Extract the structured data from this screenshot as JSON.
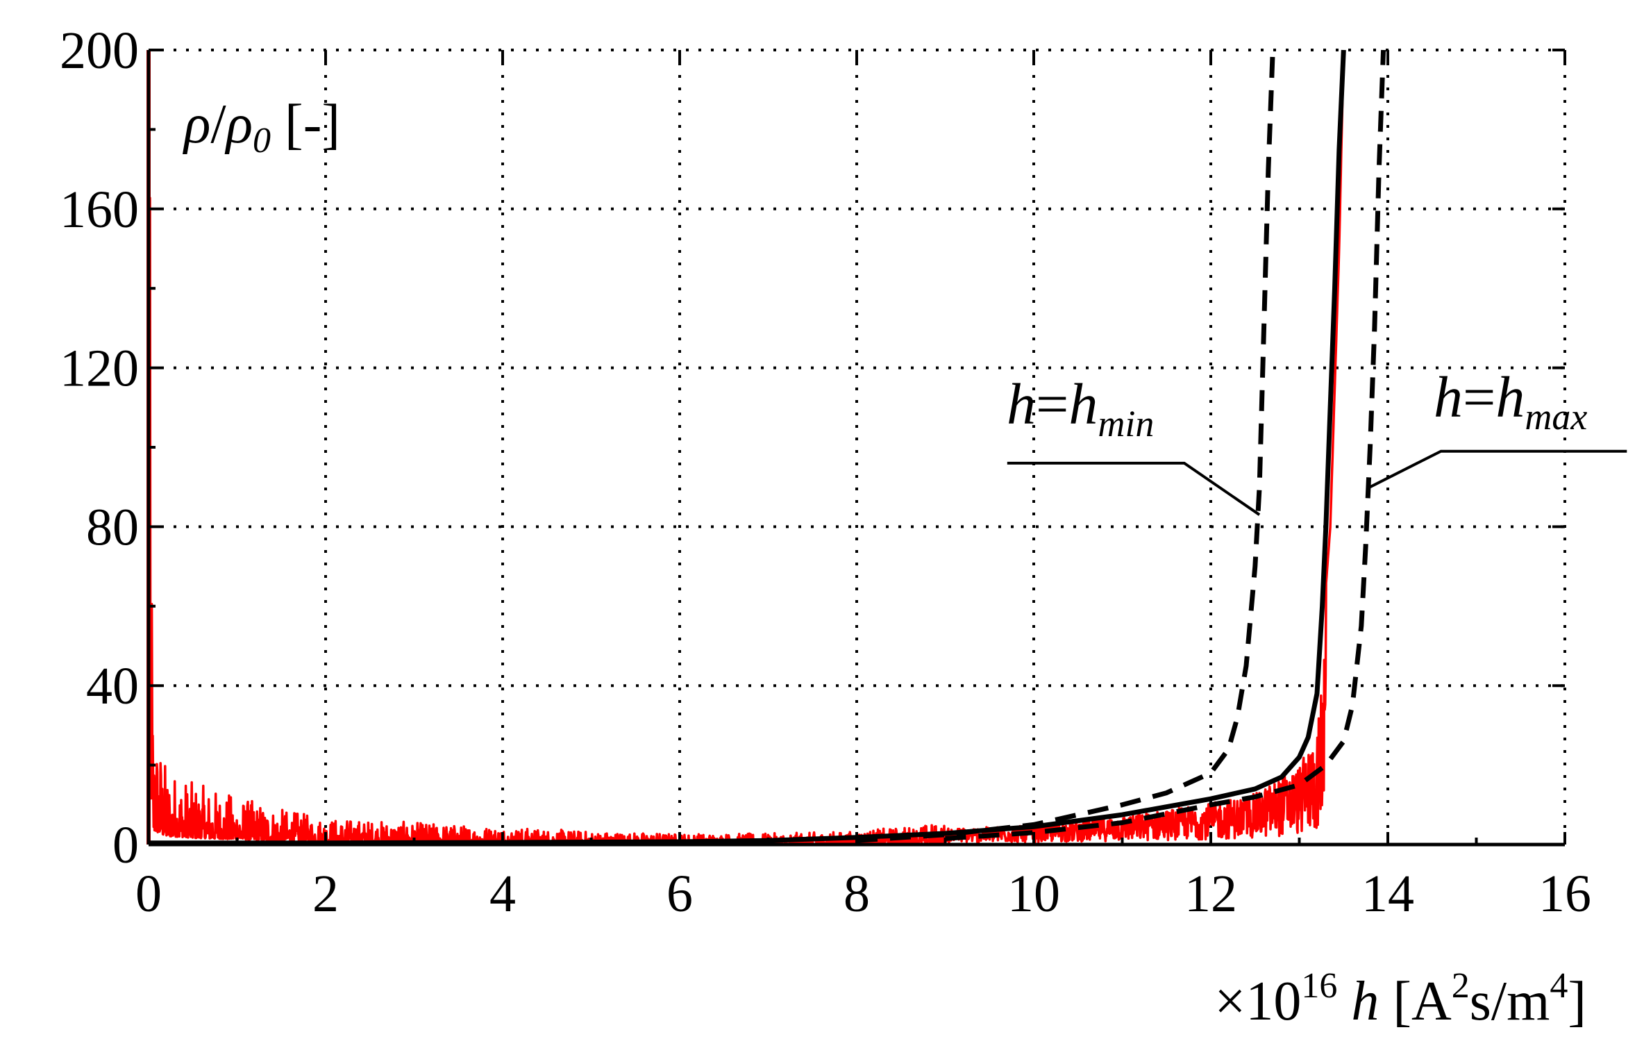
{
  "chart_data": {
    "type": "line",
    "xlim": [
      0,
      16
    ],
    "ylim": [
      0,
      200
    ],
    "x_ticks": [
      0,
      2,
      4,
      6,
      8,
      10,
      12,
      14,
      16
    ],
    "y_ticks": [
      0,
      40,
      80,
      120,
      160,
      200
    ],
    "x_tick_labels": [
      "0",
      "2",
      "4",
      "6",
      "8",
      "10",
      "12",
      "14",
      "16"
    ],
    "y_tick_labels": [
      "0",
      "40",
      "80",
      "120",
      "160",
      "200"
    ],
    "ylabel": {
      "rho": "ρ",
      "slash": "/",
      "rho0": "ρ",
      "sub0": "0",
      "unit": " [-]"
    },
    "xlabel": {
      "prefix": "×10",
      "exp": "16",
      "var": "h",
      "unit_open": " [A",
      "unit_exp1": "2",
      "unit_mid": "s/m",
      "unit_exp2": "4",
      "unit_close": "]"
    },
    "grid": true,
    "series": [
      {
        "role": "measured",
        "color": "#ff0000",
        "style": "solid-noisy",
        "envelope": [
          [
            0.0,
            200
          ],
          [
            0.05,
            30
          ],
          [
            0.2,
            18
          ],
          [
            0.5,
            14
          ],
          [
            1.0,
            11
          ],
          [
            1.5,
            8
          ],
          [
            2.0,
            6
          ],
          [
            3.0,
            5
          ],
          [
            4.0,
            4
          ],
          [
            5.0,
            3
          ],
          [
            6.0,
            2.5
          ],
          [
            7.0,
            2.5
          ],
          [
            8.0,
            3
          ],
          [
            9.0,
            5
          ],
          [
            10.0,
            6
          ],
          [
            11.0,
            9
          ],
          [
            12.0,
            13
          ],
          [
            12.5,
            16
          ],
          [
            13.0,
            25
          ],
          [
            13.2,
            35
          ],
          [
            13.35,
            80
          ],
          [
            13.45,
            150
          ],
          [
            13.5,
            200
          ]
        ]
      },
      {
        "role": "model",
        "color": "#000000",
        "style": "solid",
        "points": [
          [
            0,
            0.4
          ],
          [
            2,
            0.4
          ],
          [
            4,
            0.5
          ],
          [
            6,
            0.7
          ],
          [
            7,
            1.0
          ],
          [
            8,
            1.8
          ],
          [
            9,
            2.8
          ],
          [
            10,
            4.5
          ],
          [
            11,
            7.5
          ],
          [
            12,
            11.5
          ],
          [
            12.5,
            14
          ],
          [
            12.8,
            17
          ],
          [
            13.0,
            22
          ],
          [
            13.1,
            27
          ],
          [
            13.2,
            38
          ],
          [
            13.26,
            60
          ],
          [
            13.3,
            80
          ],
          [
            13.35,
            110
          ],
          [
            13.4,
            140
          ],
          [
            13.45,
            175
          ],
          [
            13.5,
            200
          ]
        ]
      },
      {
        "role": "h_min",
        "color": "#000000",
        "style": "dashed",
        "points": [
          [
            8,
            1.0
          ],
          [
            9,
            2.5
          ],
          [
            10,
            5
          ],
          [
            11,
            10
          ],
          [
            11.5,
            13
          ],
          [
            12.0,
            18
          ],
          [
            12.2,
            24
          ],
          [
            12.3,
            32
          ],
          [
            12.4,
            45
          ],
          [
            12.5,
            70
          ],
          [
            12.55,
            90
          ],
          [
            12.6,
            130
          ],
          [
            12.65,
            170
          ],
          [
            12.7,
            200
          ]
        ]
      },
      {
        "role": "h_max",
        "color": "#000000",
        "style": "dashed",
        "points": [
          [
            9,
            1.5
          ],
          [
            10,
            3
          ],
          [
            11,
            5.5
          ],
          [
            12,
            10
          ],
          [
            12.5,
            12
          ],
          [
            13.0,
            15
          ],
          [
            13.3,
            20
          ],
          [
            13.5,
            26
          ],
          [
            13.6,
            35
          ],
          [
            13.7,
            55
          ],
          [
            13.75,
            75
          ],
          [
            13.8,
            100
          ],
          [
            13.85,
            130
          ],
          [
            13.9,
            170
          ],
          [
            13.95,
            200
          ]
        ]
      }
    ],
    "annotations": [
      {
        "text": "h",
        "eq": "=",
        "text2": "h",
        "sub": "min",
        "leader": [
          [
            9.7,
            96
          ],
          [
            11.7,
            96
          ],
          [
            12.55,
            83
          ]
        ]
      },
      {
        "text": "h",
        "eq": "=",
        "text2": "h",
        "sub": "max",
        "leader": [
          [
            16.7,
            99
          ],
          [
            14.6,
            99
          ],
          [
            13.8,
            90
          ]
        ]
      }
    ]
  }
}
